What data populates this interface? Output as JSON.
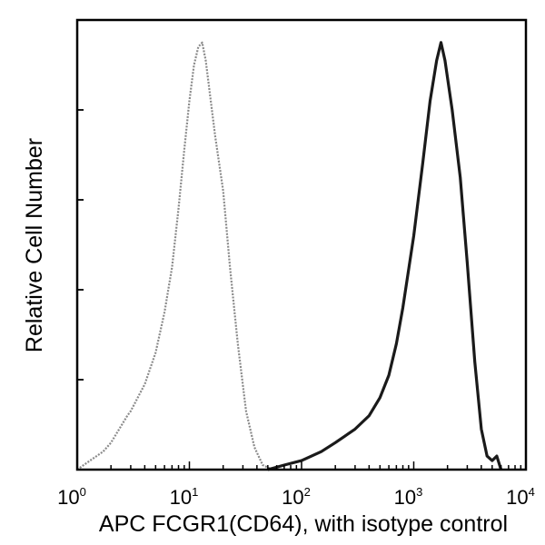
{
  "chart_data": {
    "type": "line",
    "title": "",
    "xlabel": "APC FCGR1(CD64), with isotype control",
    "ylabel": "Relative Cell Number",
    "x_scale": "log",
    "xlim": [
      1,
      10000
    ],
    "ylim": [
      0,
      100
    ],
    "x_ticks": [
      {
        "base": "10",
        "exp": "0"
      },
      {
        "base": "10",
        "exp": "1"
      },
      {
        "base": "10",
        "exp": "2"
      },
      {
        "base": "10",
        "exp": "3"
      },
      {
        "base": "10",
        "exp": "4"
      }
    ],
    "grid": false,
    "legend": "none",
    "series": [
      {
        "role": "isotype control",
        "color": "#8a8a8a",
        "points": [
          [
            1,
            0
          ],
          [
            1.3,
            2
          ],
          [
            1.7,
            4
          ],
          [
            2,
            6
          ],
          [
            2.8,
            12
          ],
          [
            3,
            13
          ],
          [
            4,
            19
          ],
          [
            5,
            26
          ],
          [
            6,
            35
          ],
          [
            7,
            45
          ],
          [
            8,
            58
          ],
          [
            9,
            71
          ],
          [
            10,
            82
          ],
          [
            11,
            90
          ],
          [
            12,
            94
          ],
          [
            13,
            95
          ],
          [
            14,
            91
          ],
          [
            15,
            85
          ],
          [
            17,
            74
          ],
          [
            20,
            62
          ],
          [
            23,
            45
          ],
          [
            27,
            28
          ],
          [
            32,
            13
          ],
          [
            38,
            5
          ],
          [
            45,
            1
          ],
          [
            55,
            0
          ]
        ]
      },
      {
        "role": "FCGR1(CD64) stained",
        "color": "#1a1a1a",
        "points": [
          [
            50,
            0
          ],
          [
            70,
            1
          ],
          [
            100,
            2
          ],
          [
            150,
            4
          ],
          [
            200,
            6
          ],
          [
            300,
            9
          ],
          [
            400,
            12
          ],
          [
            500,
            16
          ],
          [
            600,
            21
          ],
          [
            700,
            28
          ],
          [
            800,
            36
          ],
          [
            1000,
            52
          ],
          [
            1200,
            68
          ],
          [
            1400,
            82
          ],
          [
            1600,
            91
          ],
          [
            1750,
            95
          ],
          [
            1900,
            91
          ],
          [
            2200,
            80
          ],
          [
            2600,
            65
          ],
          [
            3000,
            46
          ],
          [
            3500,
            24
          ],
          [
            4000,
            9
          ],
          [
            4500,
            3
          ],
          [
            5000,
            2
          ],
          [
            5500,
            3
          ],
          [
            6000,
            0
          ]
        ]
      }
    ]
  }
}
